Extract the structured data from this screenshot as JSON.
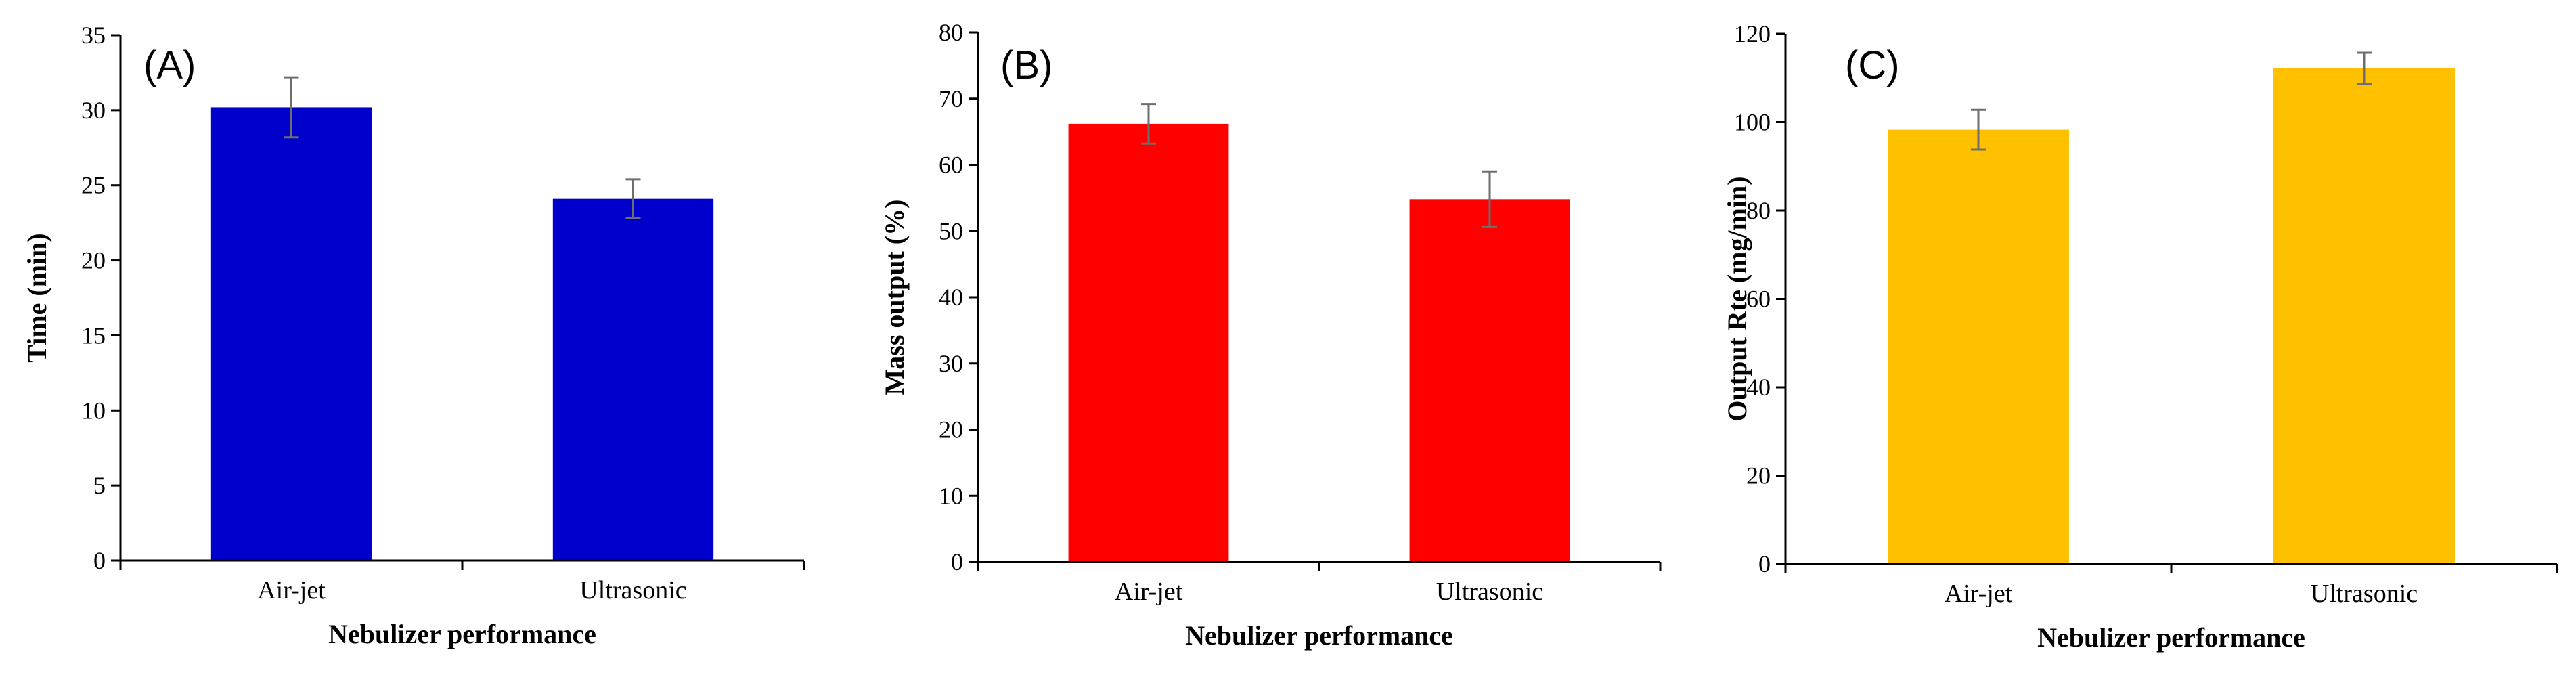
{
  "chart_data": [
    {
      "type": "bar",
      "panel_label": "(A)",
      "categories": [
        "Air-jet",
        "Ultrasonic"
      ],
      "values": [
        30.2,
        24.1
      ],
      "errors": [
        2.0,
        1.3
      ],
      "bar_color": "#0000CC",
      "xlabel": "Nebulizer performance",
      "ylabel": "Time (min)",
      "ylim": [
        0,
        35
      ],
      "ytick_step": 5,
      "grid": false,
      "legend": "none"
    },
    {
      "type": "bar",
      "panel_label": "(B)",
      "categories": [
        "Air-jet",
        "Ultrasonic"
      ],
      "values": [
        66.2,
        54.8
      ],
      "errors": [
        3.0,
        4.2
      ],
      "bar_color": "#FF0000",
      "xlabel": "Nebulizer performance",
      "ylabel": "Mass output (%)",
      "ylim": [
        0,
        80
      ],
      "ytick_step": 10,
      "grid": false,
      "legend": "none"
    },
    {
      "type": "bar",
      "panel_label": "(C)",
      "categories": [
        "Air-jet",
        "Ultrasonic"
      ],
      "values": [
        98.3,
        112.2
      ],
      "errors": [
        4.5,
        3.5
      ],
      "bar_color": "#FFC000",
      "xlabel": "Nebulizer performance",
      "ylabel": "Output Rte (mg/min)",
      "ylim": [
        0,
        120
      ],
      "ytick_step": 20,
      "grid": false,
      "legend": "none"
    }
  ]
}
